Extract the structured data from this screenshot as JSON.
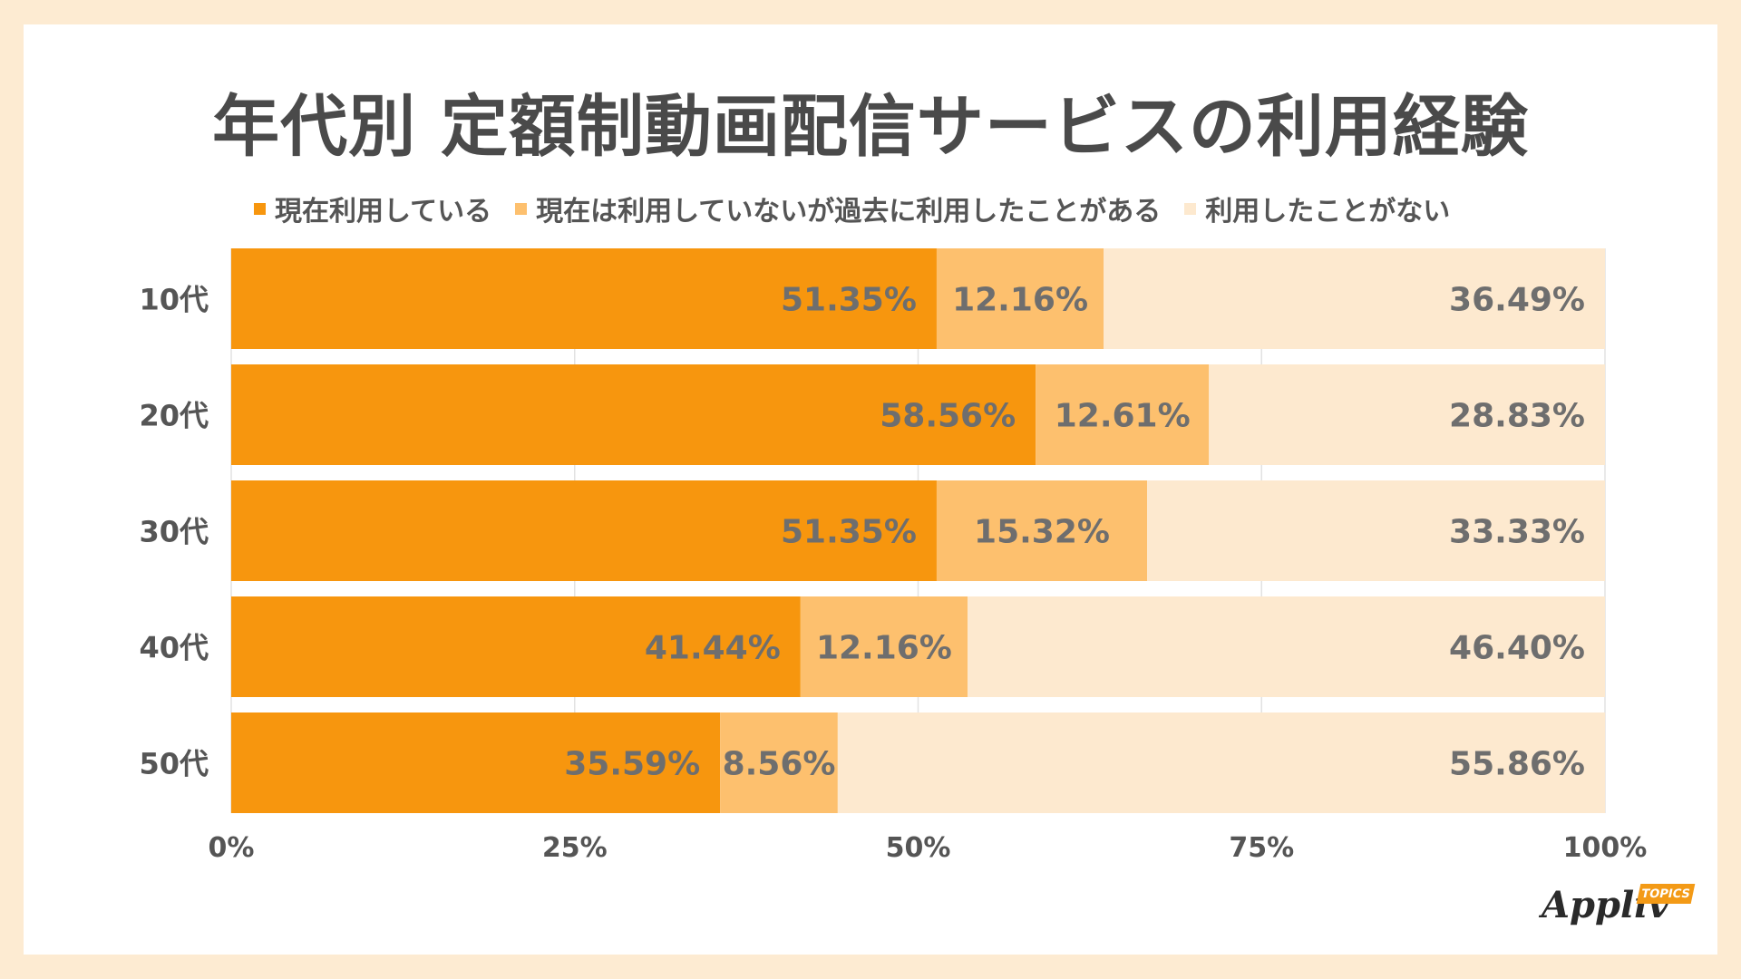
{
  "title": "年代別 定額制動画配信サービスの利用経験",
  "legend": [
    {
      "label": "現在利用している",
      "color": "#f7960e"
    },
    {
      "label": "現在は利用していないが過去に利用したことがある",
      "color": "#fdc06e"
    },
    {
      "label": "利用したことがない",
      "color": "#fde9cf"
    }
  ],
  "logo": {
    "text": "Appliv",
    "badge": "TOPICS"
  },
  "chart_data": {
    "type": "bar",
    "orientation": "horizontal",
    "stacked": "percent",
    "categories": [
      "10代",
      "20代",
      "30代",
      "40代",
      "50代"
    ],
    "series": [
      {
        "name": "現在利用している",
        "values": [
          51.35,
          58.56,
          51.35,
          41.44,
          35.59
        ],
        "labels": [
          "51.35%",
          "58.56%",
          "51.35%",
          "41.44%",
          "35.59%"
        ]
      },
      {
        "name": "現在は利用していないが過去に利用したことがある",
        "values": [
          12.16,
          12.61,
          15.32,
          12.16,
          8.56
        ],
        "labels": [
          "12.16%",
          "12.61%",
          "15.32%",
          "12.16%",
          "8.56%"
        ]
      },
      {
        "name": "利用したことがない",
        "values": [
          36.49,
          28.83,
          33.33,
          46.4,
          55.86
        ],
        "labels": [
          "36.49%",
          "28.83%",
          "33.33%",
          "46.40%",
          "55.86%"
        ]
      }
    ],
    "xlim": [
      0,
      100
    ],
    "xticks": [
      "0%",
      "25%",
      "50%",
      "75%",
      "100%"
    ],
    "grid": true,
    "legend_position": "top"
  }
}
